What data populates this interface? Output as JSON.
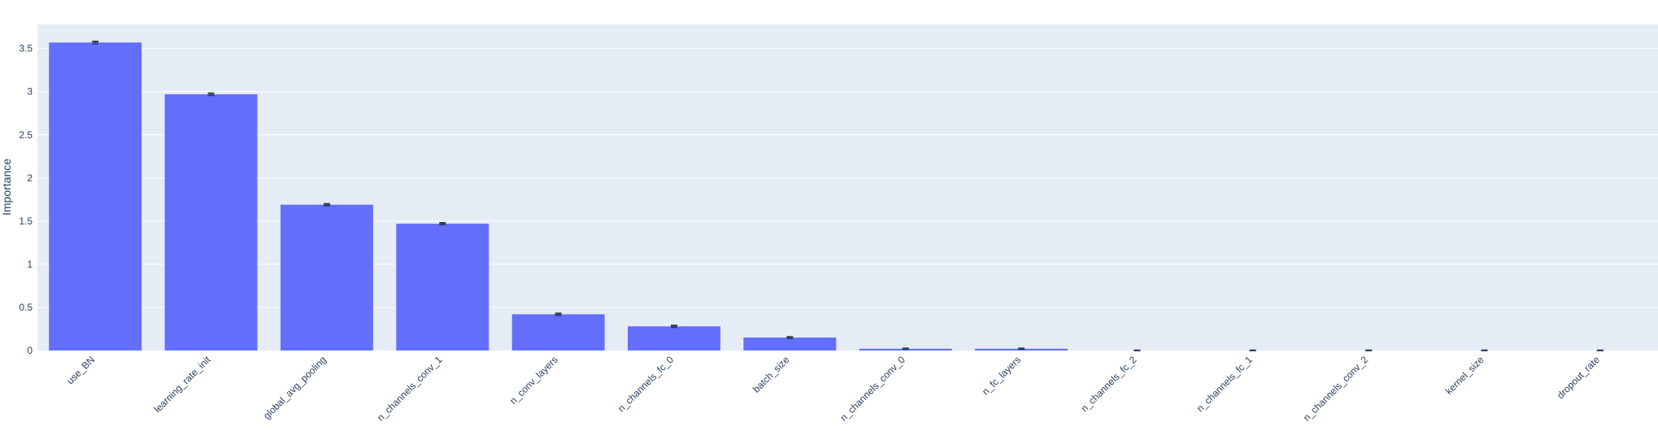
{
  "chart_data": {
    "type": "bar",
    "title": "",
    "xlabel": "",
    "ylabel": "Importance",
    "ylim": [
      0,
      3.78
    ],
    "yticks": [
      0,
      0.5,
      1,
      1.5,
      2,
      2.5,
      3,
      3.5
    ],
    "ytick_labels": [
      "0",
      "0.5",
      "1",
      "1.5",
      "2",
      "2.5",
      "3",
      "3.5"
    ],
    "grid": true,
    "legend": "none",
    "categories": [
      "use_BN",
      "learning_rate_init",
      "global_avg_pooling",
      "n_channels_conv_1",
      "n_conv_layers",
      "n_channels_fc_0",
      "batch_size",
      "n_channels_conv_0",
      "n_fc_layers",
      "n_channels_fc_2",
      "n_channels_fc_1",
      "n_channels_conv_2",
      "kernel_size",
      "dropout_rate"
    ],
    "values": [
      3.57,
      2.97,
      1.69,
      1.47,
      0.42,
      0.28,
      0.15,
      0.02,
      0.02,
      0.0,
      0.0,
      0.0,
      0.0,
      0.0
    ],
    "errors": [
      0.012,
      0.012,
      0.01,
      0.01,
      0.01,
      0.01,
      0.008,
      0.005,
      0.005,
      0.002,
      0.002,
      0.002,
      0.002,
      0.002
    ],
    "colors": {
      "bar": "#636efa",
      "plot_bg": "#e5ecf6",
      "grid": "#ffffff",
      "text": "#2a3f5f",
      "error": "#2a3f5f"
    }
  }
}
